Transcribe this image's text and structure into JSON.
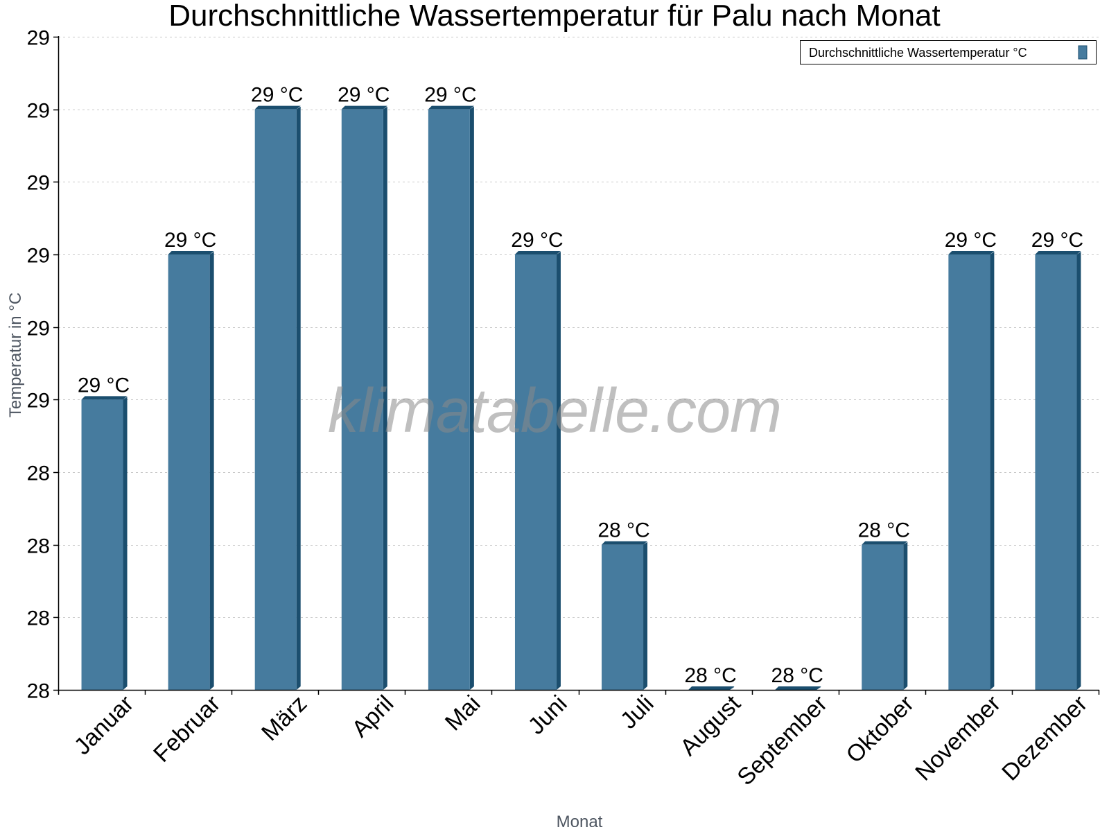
{
  "chart_data": {
    "type": "bar",
    "title": "Durchschnittliche Wassertemperatur für Palu nach Monat",
    "xlabel": "Monat",
    "ylabel": "Temperatur in °C",
    "categories": [
      "Januar",
      "Februar",
      "März",
      "April",
      "Mai",
      "Juni",
      "Juli",
      "August",
      "September",
      "Oktober",
      "November",
      "Dezember"
    ],
    "series": [
      {
        "name": "Durchschnittliche Wassertemperatur °C",
        "color": "#467b9e",
        "color_dark": "#1b4e6e",
        "values": [
          28.5,
          28.75,
          29.0,
          29.0,
          29.0,
          28.75,
          28.25,
          28.0,
          28.0,
          28.25,
          28.75,
          28.75
        ],
        "data_labels": [
          "29 °C",
          "29 °C",
          "29 °C",
          "29 °C",
          "29 °C",
          "29 °C",
          "28 °C",
          "28 °C",
          "28 °C",
          "28 °C",
          "29 °C",
          "29 °C"
        ]
      }
    ],
    "ylim": [
      28.0,
      29.125
    ],
    "yticks": [
      28.0,
      28.125,
      28.25,
      28.375,
      28.5,
      28.625,
      28.75,
      28.875,
      29.0,
      29.125
    ],
    "ytick_labels": [
      "28",
      "28",
      "28",
      "28",
      "29",
      "29",
      "29",
      "29",
      "29",
      "29"
    ],
    "grid": true,
    "legend_position": "top-right",
    "watermark": "klimatabelle.com"
  }
}
